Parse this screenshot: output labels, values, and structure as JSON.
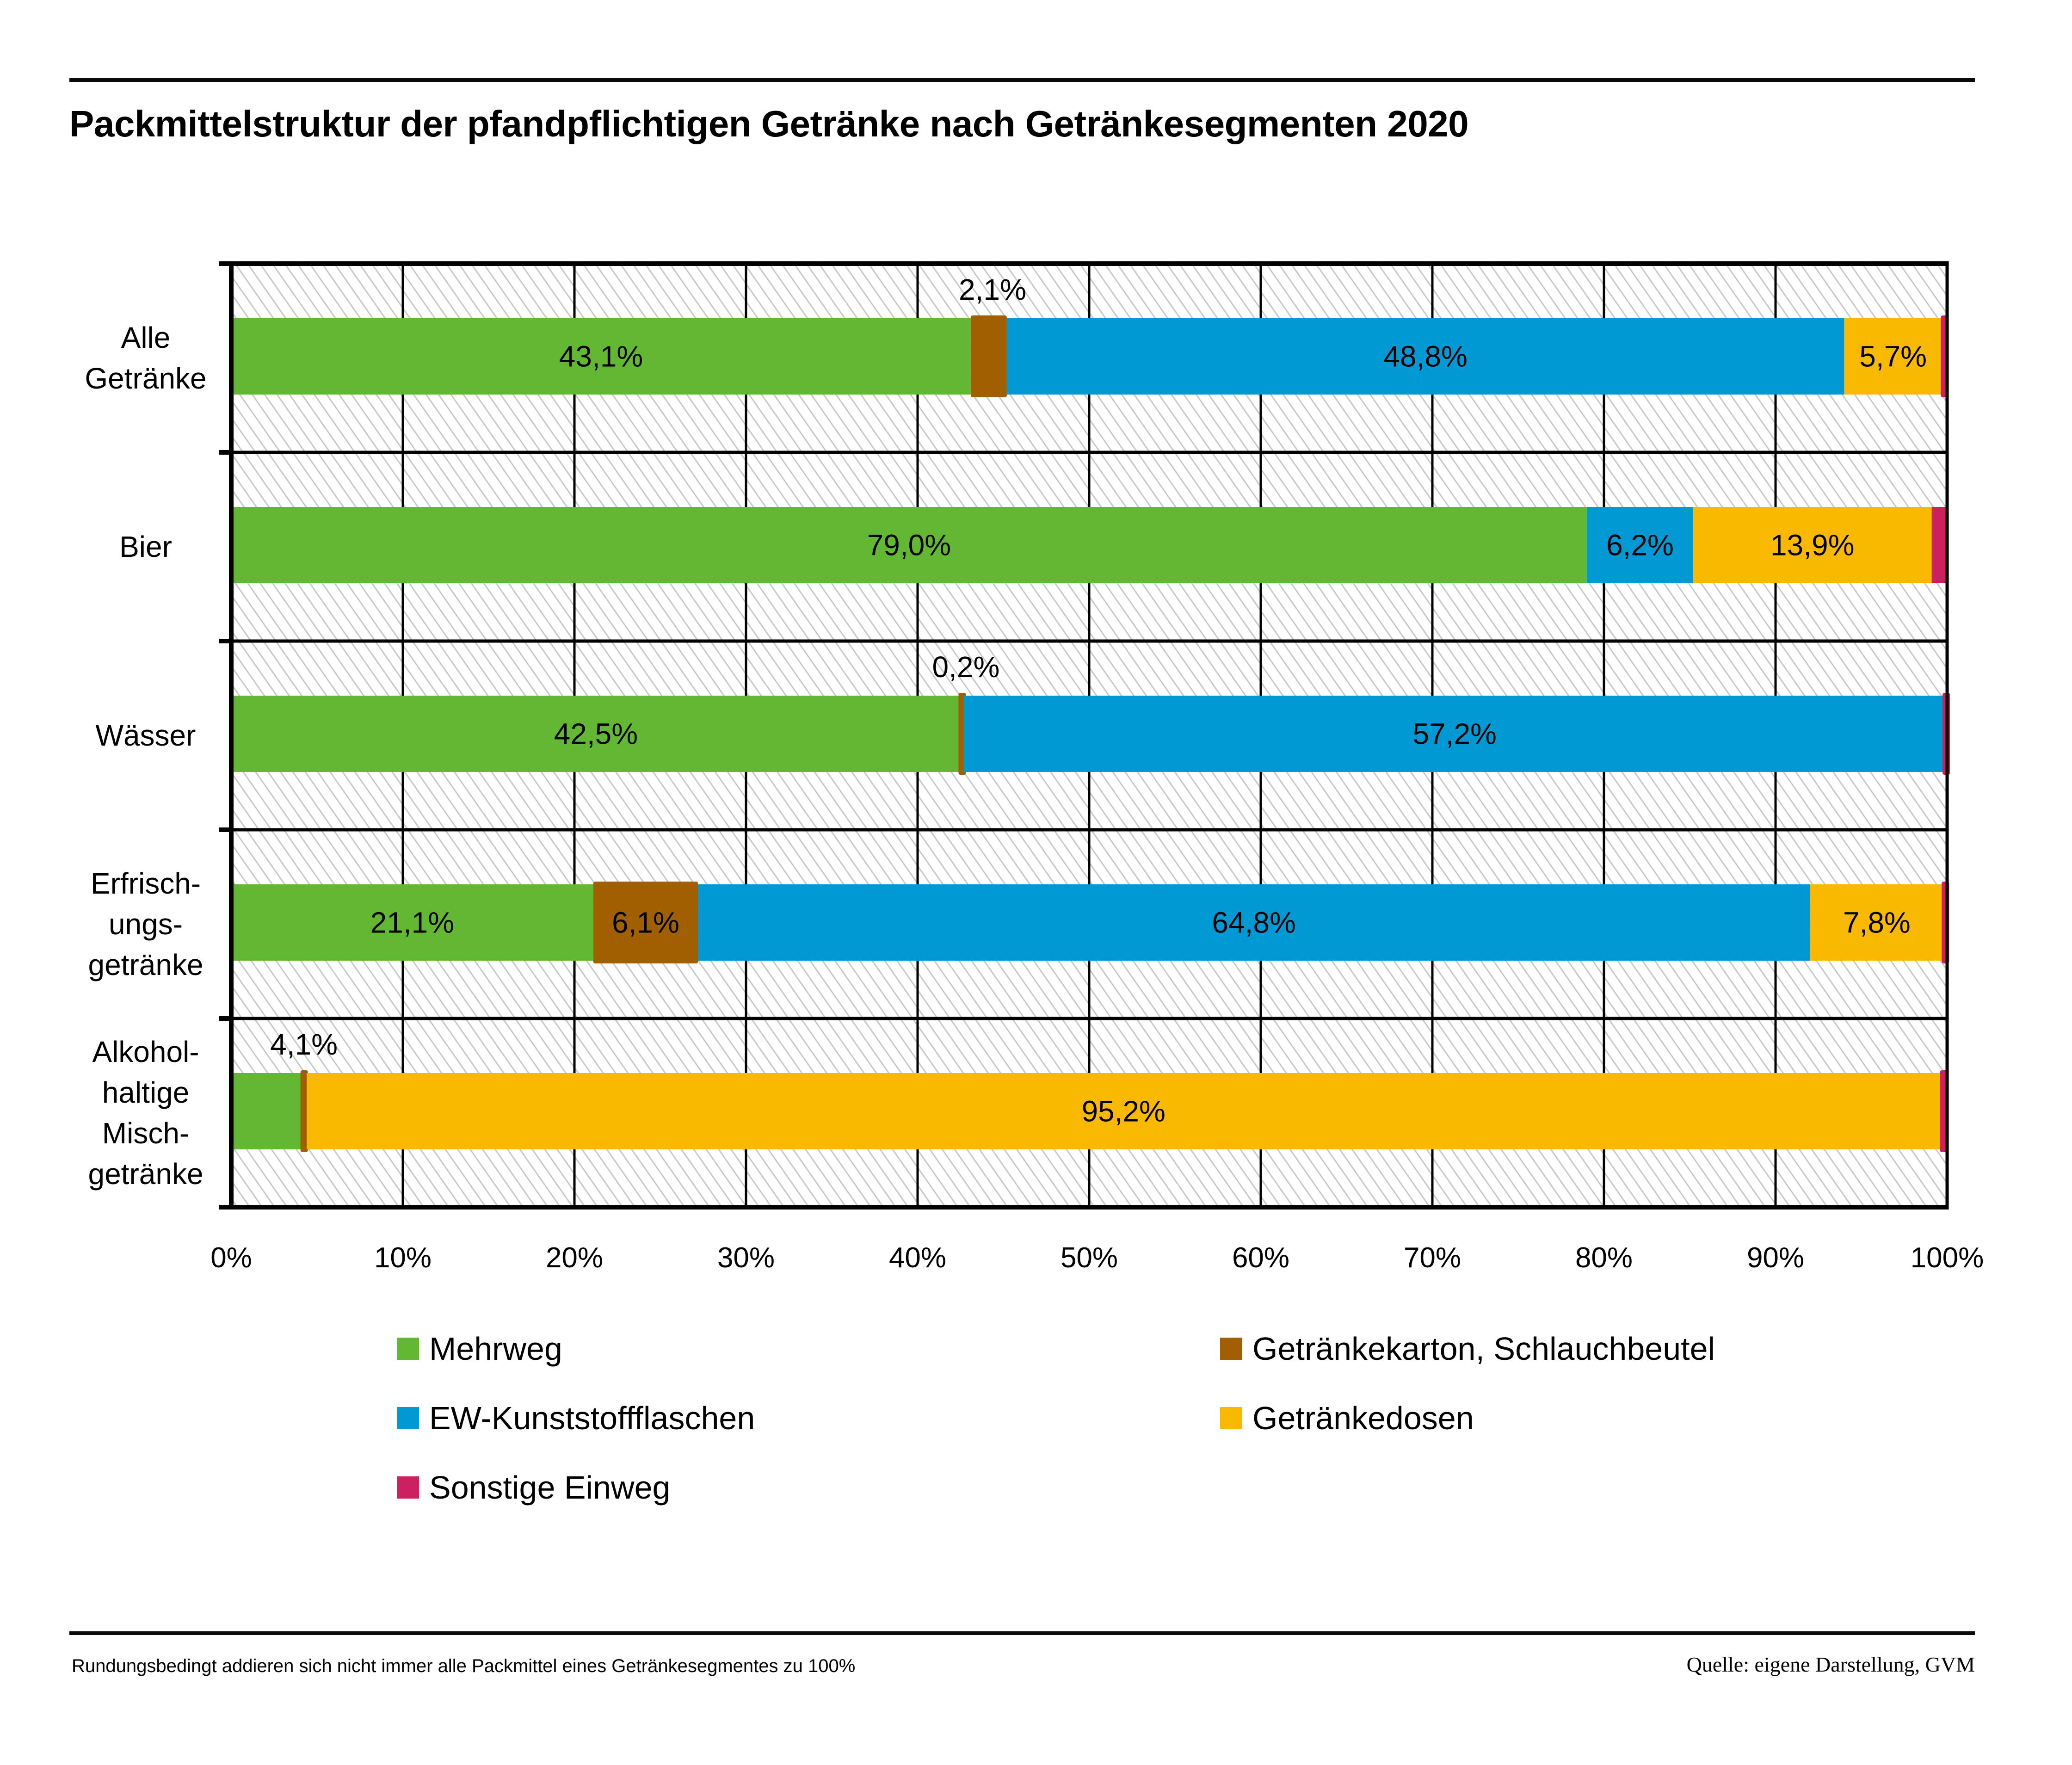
{
  "title": "Packmittelstruktur der pfandpflichtigen Getränke nach Getränkesegmenten 2020",
  "footnote": "Rundungsbedingt addieren sich nicht immer alle Packmittel eines Getränkesegmentes zu 100%",
  "source": "Quelle: eigene Darstellung, GVM",
  "chart_data": {
    "type": "bar",
    "orientation": "horizontal",
    "stacked": true,
    "title": "Packmittelstruktur der pfandpflichtigen Getränke nach Getränkesegmenten 2020",
    "xlabel": "",
    "ylabel": "",
    "xlim": [
      0,
      100
    ],
    "x_ticks": [
      "0%",
      "10%",
      "20%",
      "30%",
      "40%",
      "50%",
      "60%",
      "70%",
      "80%",
      "90%",
      "100%"
    ],
    "grid": true,
    "legend_position": "bottom",
    "categories": [
      [
        "Alle",
        "Getränke"
      ],
      [
        "Bier"
      ],
      [
        "Wässer"
      ],
      [
        "Erfrisch-",
        "ungs-",
        "getränke"
      ],
      [
        "Alkohol-",
        "haltige",
        "Misch-",
        "getränke"
      ]
    ],
    "series": [
      {
        "name": "Mehrweg",
        "color": "#62b832",
        "values": [
          43.1,
          79.0,
          42.5,
          21.1,
          4.1
        ],
        "labels": [
          "43,1%",
          "79,0%",
          "42,5%",
          "21,1%",
          "4,1%"
        ],
        "label_above": [
          false,
          false,
          false,
          false,
          true
        ]
      },
      {
        "name": "Getränkekarton, Schlauchbeutel",
        "color": "#a06000",
        "values": [
          2.1,
          0.0,
          0.2,
          6.1,
          0.3
        ],
        "labels": [
          "2,1%",
          "",
          "0,2%",
          "6,1%",
          ""
        ],
        "label_above": [
          true,
          false,
          true,
          false,
          false
        ]
      },
      {
        "name": "EW-Kunststoffflaschen",
        "color": "#0099d4",
        "values": [
          48.8,
          6.2,
          57.2,
          64.8,
          0.0
        ],
        "labels": [
          "48,8%",
          "6,2%",
          "57,2%",
          "64,8%",
          ""
        ],
        "label_above": [
          false,
          false,
          false,
          false,
          false
        ]
      },
      {
        "name": "Getränkedosen",
        "color": "#f9b900",
        "values": [
          5.7,
          13.9,
          0.0,
          7.8,
          95.2
        ],
        "labels": [
          "5,7%",
          "13,9%",
          "",
          "7,8%",
          "95,2%"
        ],
        "label_above": [
          false,
          false,
          false,
          false,
          false
        ]
      },
      {
        "name": "Sonstige Einweg",
        "color": "#cc2160",
        "values": [
          0.3,
          0.9,
          0.1,
          0.2,
          0.4
        ],
        "labels": [
          "",
          "",
          "",
          "",
          ""
        ],
        "label_above": [
          false,
          false,
          false,
          false,
          false
        ]
      }
    ]
  },
  "legend": [
    {
      "label": "Mehrweg",
      "color": "#62b832"
    },
    {
      "label": "Getränkekarton, Schlauchbeutel",
      "color": "#a06000"
    },
    {
      "label": "EW-Kunststoffflaschen",
      "color": "#0099d4"
    },
    {
      "label": "Getränkedosen",
      "color": "#f9b900"
    },
    {
      "label": "Sonstige Einweg",
      "color": "#cc2160"
    }
  ]
}
